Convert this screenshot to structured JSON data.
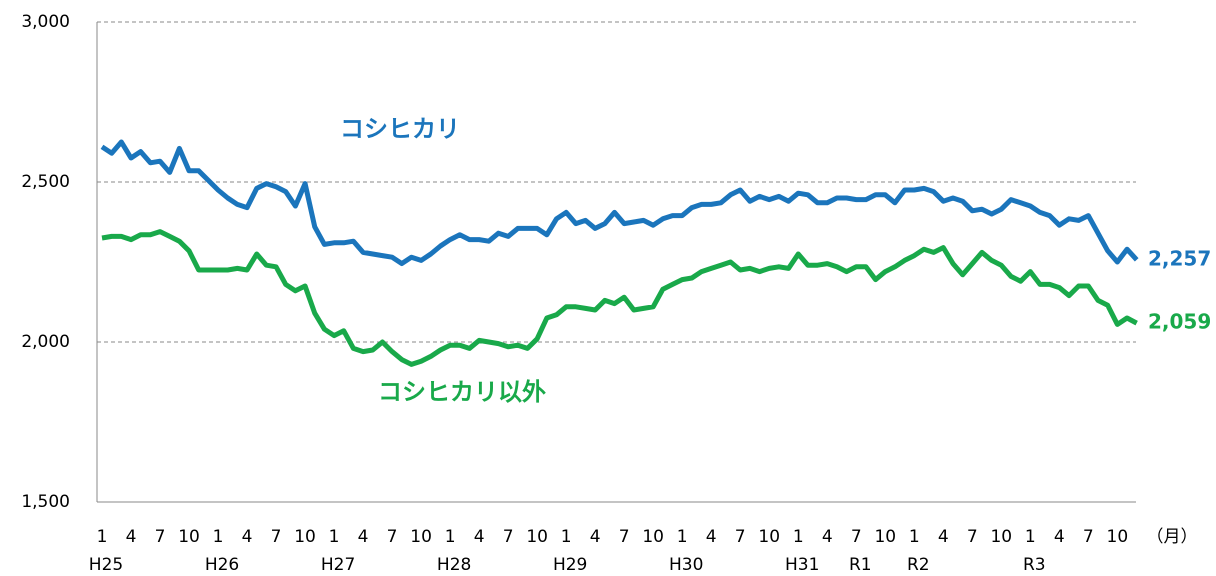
{
  "chart_data": {
    "type": "line",
    "categories": [
      "1",
      null,
      null,
      "4",
      null,
      null,
      "7",
      null,
      null,
      "10",
      null,
      null,
      "1",
      null,
      null,
      "4",
      null,
      null,
      "7",
      null,
      null,
      "10",
      null,
      null,
      "1",
      null,
      null,
      "4",
      null,
      null,
      "7",
      null,
      null,
      "10",
      null,
      null,
      "1",
      null,
      null,
      "4",
      null,
      null,
      "7",
      null,
      null,
      "10",
      null,
      null,
      "1",
      null,
      null,
      "4",
      null,
      null,
      "7",
      null,
      null,
      "10",
      null,
      null,
      "1",
      null,
      null,
      "4",
      null,
      null,
      "7",
      null,
      null,
      "10",
      null,
      null,
      "1",
      null,
      null,
      "4",
      null,
      null,
      "7",
      null,
      null,
      "10",
      null,
      null,
      "1",
      null,
      null,
      "4",
      null,
      null,
      "7",
      null,
      null,
      "10",
      null,
      null,
      "1",
      null,
      null,
      "4",
      null,
      null,
      "7",
      null,
      null,
      "10",
      null,
      null
    ],
    "year_labels": [
      "H25",
      null,
      null,
      null,
      null,
      null,
      null,
      null,
      null,
      null,
      null,
      null,
      "H26",
      null,
      null,
      null,
      null,
      null,
      null,
      null,
      null,
      null,
      null,
      null,
      "H27",
      null,
      null,
      null,
      null,
      null,
      null,
      null,
      null,
      null,
      null,
      null,
      "H28",
      null,
      null,
      null,
      null,
      null,
      null,
      null,
      null,
      null,
      null,
      null,
      "H29",
      null,
      null,
      null,
      null,
      null,
      null,
      null,
      null,
      null,
      null,
      null,
      "H30",
      null,
      null,
      null,
      null,
      null,
      null,
      null,
      null,
      null,
      null,
      null,
      "H31",
      null,
      null,
      null,
      null,
      null,
      "R1",
      null,
      null,
      null,
      null,
      null,
      "R2",
      null,
      null,
      null,
      null,
      null,
      null,
      null,
      null,
      null,
      null,
      null,
      "R3",
      null,
      null,
      null,
      null,
      null,
      null,
      null,
      null,
      null,
      null,
      null
    ],
    "x_unit": "（月）",
    "ylim": [
      1500,
      3000
    ],
    "yticks": [
      {
        "value": 1500,
        "label": "1,500"
      },
      {
        "value": 2000,
        "label": "2,000"
      },
      {
        "value": 2500,
        "label": "2,500"
      },
      {
        "value": 3000,
        "label": "3,000"
      }
    ],
    "grid": true,
    "series": [
      {
        "name": "コシヒカリ",
        "color": "#1b75bc",
        "values": [
          2610,
          2590,
          2625,
          2575,
          2595,
          2560,
          2565,
          2530,
          2605,
          2535,
          2535,
          2505,
          2475,
          2450,
          2430,
          2420,
          2480,
          2495,
          2485,
          2470,
          2425,
          2495,
          2360,
          2305,
          2310,
          2310,
          2315,
          2280,
          2275,
          2270,
          2265,
          2245,
          2265,
          2255,
          2275,
          2300,
          2320,
          2335,
          2320,
          2320,
          2315,
          2340,
          2330,
          2355,
          2355,
          2355,
          2335,
          2385,
          2405,
          2370,
          2380,
          2355,
          2370,
          2405,
          2370,
          2375,
          2380,
          2365,
          2385,
          2395,
          2395,
          2420,
          2430,
          2430,
          2435,
          2460,
          2475,
          2440,
          2455,
          2445,
          2455,
          2440,
          2465,
          2460,
          2435,
          2435,
          2450,
          2450,
          2445,
          2445,
          2460,
          2460,
          2435,
          2475,
          2475,
          2480,
          2470,
          2440,
          2450,
          2440,
          2410,
          2415,
          2400,
          2415,
          2445,
          2435,
          2425,
          2405,
          2395,
          2365,
          2385,
          2380,
          2395,
          2340,
          2285,
          2250,
          2290,
          2257
        ],
        "value_labels": [
          null,
          null,
          null,
          null,
          null,
          null,
          null,
          null,
          null,
          null,
          null,
          null,
          null,
          null,
          null,
          null,
          null,
          null,
          null,
          null,
          null,
          null,
          null,
          null,
          null,
          null,
          null,
          null,
          null,
          null,
          null,
          null,
          null,
          null,
          null,
          null,
          null,
          null,
          null,
          null,
          null,
          null,
          null,
          null,
          null,
          null,
          null,
          null,
          null,
          null,
          null,
          null,
          null,
          null,
          null,
          null,
          null,
          null,
          null,
          null,
          null,
          null,
          null,
          null,
          null,
          null,
          null,
          null,
          null,
          null,
          null,
          null,
          null,
          null,
          null,
          null,
          null,
          null,
          null,
          null,
          null,
          null,
          null,
          null,
          null,
          null,
          null,
          null,
          null,
          null,
          null,
          null,
          null,
          null,
          null,
          null,
          null,
          null,
          null,
          null,
          null,
          null,
          null,
          null,
          null,
          null,
          null,
          "2,257"
        ]
      },
      {
        "name": "コシヒカリ以外",
        "color": "#19a94a",
        "values": [
          2325,
          2330,
          2330,
          2320,
          2335,
          2335,
          2345,
          2330,
          2315,
          2285,
          2225,
          2225,
          2225,
          2225,
          2230,
          2225,
          2275,
          2240,
          2235,
          2180,
          2160,
          2175,
          2090,
          2040,
          2020,
          2035,
          1980,
          1970,
          1975,
          2000,
          1970,
          1945,
          1930,
          1940,
          1955,
          1975,
          1990,
          1990,
          1980,
          2005,
          2000,
          1995,
          1985,
          1990,
          1980,
          2010,
          2075,
          2085,
          2110,
          2110,
          2105,
          2100,
          2130,
          2120,
          2140,
          2100,
          2105,
          2110,
          2165,
          2180,
          2195,
          2200,
          2220,
          2230,
          2240,
          2250,
          2225,
          2230,
          2220,
          2230,
          2235,
          2230,
          2275,
          2240,
          2240,
          2245,
          2235,
          2220,
          2235,
          2235,
          2195,
          2220,
          2235,
          2255,
          2270,
          2290,
          2280,
          2295,
          2245,
          2210,
          2245,
          2280,
          2255,
          2240,
          2205,
          2190,
          2220,
          2180,
          2180,
          2170,
          2145,
          2175,
          2175,
          2130,
          2115,
          2055,
          2075,
          2059
        ],
        "value_labels": [
          null,
          null,
          null,
          null,
          null,
          null,
          null,
          null,
          null,
          null,
          null,
          null,
          null,
          null,
          null,
          null,
          null,
          null,
          null,
          null,
          null,
          null,
          null,
          null,
          null,
          null,
          null,
          null,
          null,
          null,
          null,
          null,
          null,
          null,
          null,
          null,
          null,
          null,
          null,
          null,
          null,
          null,
          null,
          null,
          null,
          null,
          null,
          null,
          null,
          null,
          null,
          null,
          null,
          null,
          null,
          null,
          null,
          null,
          null,
          null,
          null,
          null,
          null,
          null,
          null,
          null,
          null,
          null,
          null,
          null,
          null,
          null,
          null,
          null,
          null,
          null,
          null,
          null,
          null,
          null,
          null,
          null,
          null,
          null,
          null,
          null,
          null,
          null,
          null,
          null,
          null,
          null,
          null,
          null,
          null,
          null,
          null,
          null,
          null,
          null,
          null,
          null,
          null,
          null,
          null,
          null,
          null,
          "2,059"
        ]
      }
    ]
  }
}
